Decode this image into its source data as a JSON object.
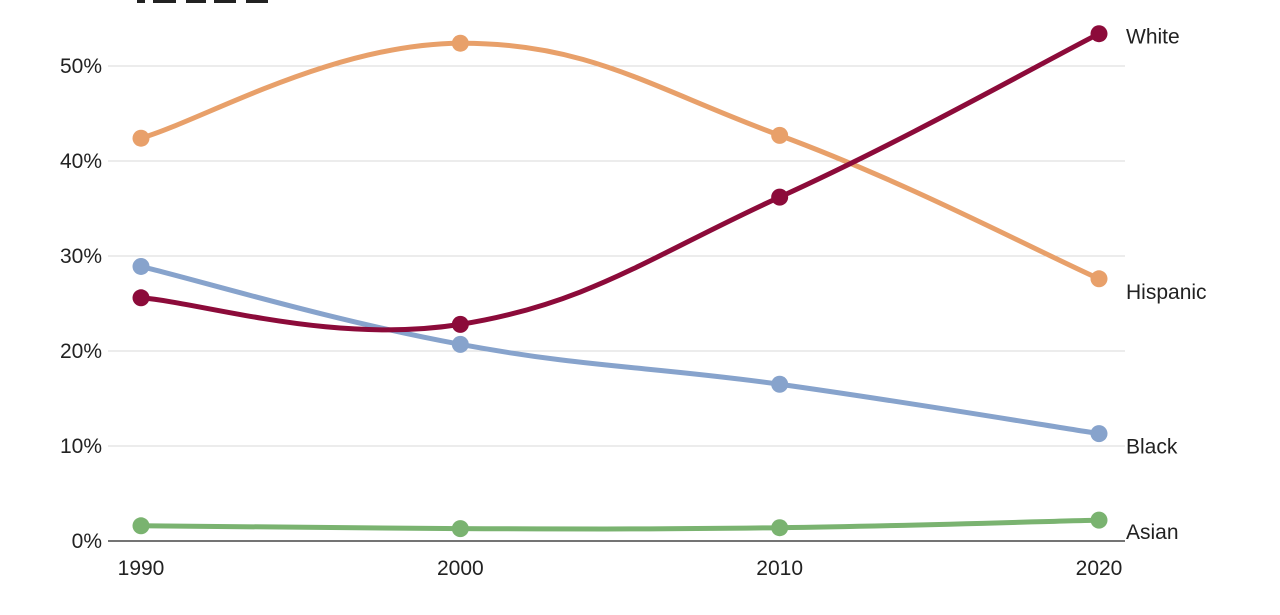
{
  "chart_data": {
    "type": "line",
    "title": "",
    "xlabel": "",
    "ylabel": "",
    "x": [
      1990,
      2000,
      2010,
      2020
    ],
    "ylim": [
      0,
      50
    ],
    "yticks": [
      "0%",
      "10%",
      "20%",
      "30%",
      "40%",
      "50%"
    ],
    "xticks": [
      "1990",
      "2000",
      "2010",
      "2020"
    ],
    "grid": true,
    "legend": "direct labels at right end of lines",
    "series": [
      {
        "name": "White",
        "color": "#8c0b3a",
        "values": [
          25.6,
          22.8,
          36.2,
          53.4
        ]
      },
      {
        "name": "Hispanic",
        "color": "#e8a06a",
        "values": [
          42.4,
          52.4,
          42.7,
          27.6
        ]
      },
      {
        "name": "Black",
        "color": "#87a3cc",
        "values": [
          28.9,
          20.7,
          16.5,
          11.3
        ]
      },
      {
        "name": "Asian",
        "color": "#7ab370",
        "values": [
          1.6,
          1.3,
          1.4,
          2.2
        ]
      }
    ]
  }
}
